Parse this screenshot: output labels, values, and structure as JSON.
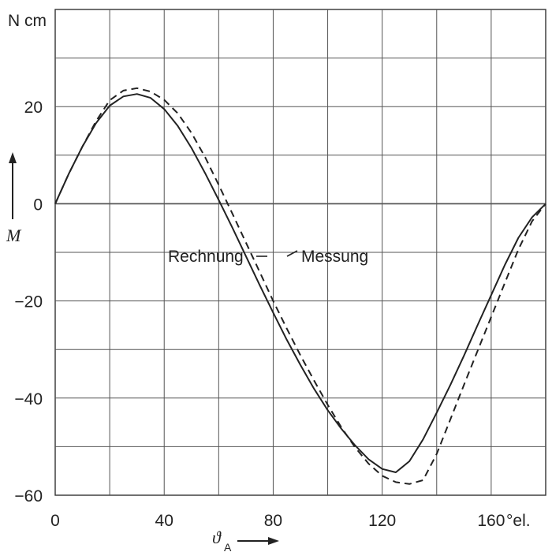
{
  "chart_data": {
    "type": "line",
    "xlabel": "ϑ",
    "xlabel_sub": "A",
    "xunit": "°el.",
    "ylabel": "M",
    "yunit": "N cm",
    "xlim": [
      0,
      180
    ],
    "ylim": [
      -60,
      40
    ],
    "x_grid_step": 20,
    "y_grid_step": 10,
    "x_ticks": [
      "0",
      "40",
      "80",
      "120",
      "160"
    ],
    "y_ticks": [
      "20",
      "0",
      "-20",
      "-40",
      "-60"
    ],
    "grid": true,
    "series": [
      {
        "name": "Rechnung",
        "style": "solid",
        "x": [
          0,
          5,
          10,
          15,
          20,
          25,
          30,
          35,
          40,
          45,
          50,
          55,
          60,
          65,
          70,
          75,
          80,
          85,
          90,
          95,
          100,
          105,
          110,
          115,
          120,
          125,
          130,
          135,
          140,
          145,
          150,
          155,
          160,
          165,
          170,
          175,
          180
        ],
        "y": [
          0,
          6.2,
          11.8,
          16.6,
          20.2,
          22.1,
          22.6,
          21.8,
          19.5,
          16,
          11.5,
          6.3,
          0.8,
          -4.9,
          -10.8,
          -16.7,
          -22.4,
          -28,
          -33.2,
          -38.1,
          -42.5,
          -46.3,
          -49.7,
          -52.6,
          -54.6,
          -55.3,
          -53,
          -48.5,
          -43,
          -37.3,
          -31.3,
          -25,
          -18.8,
          -12.6,
          -7,
          -2.8,
          0
        ]
      },
      {
        "name": "Messung",
        "style": "dashed",
        "x": [
          0,
          5,
          10,
          15,
          20,
          25,
          30,
          35,
          40,
          45,
          50,
          55,
          60,
          65,
          70,
          75,
          80,
          85,
          90,
          95,
          100,
          105,
          110,
          115,
          120,
          125,
          130,
          135,
          140,
          145,
          150,
          155,
          160,
          165,
          170,
          175,
          180
        ],
        "y": [
          0,
          6.2,
          11.8,
          17,
          21.3,
          23.3,
          23.8,
          23.1,
          21.4,
          18.6,
          14.6,
          9.6,
          3.9,
          -2,
          -8,
          -14,
          -20,
          -25.7,
          -31.2,
          -36.4,
          -41.4,
          -46,
          -50.1,
          -53.5,
          -56,
          -57.3,
          -57.7,
          -56.9,
          -51.5,
          -44.4,
          -37.3,
          -30.3,
          -23.3,
          -16.3,
          -9.4,
          -3.6,
          0
        ]
      }
    ],
    "annotations": [
      {
        "text": "Rechnung",
        "target_series": "Rechnung"
      },
      {
        "text": "Messung",
        "target_series": "Messung"
      }
    ]
  }
}
